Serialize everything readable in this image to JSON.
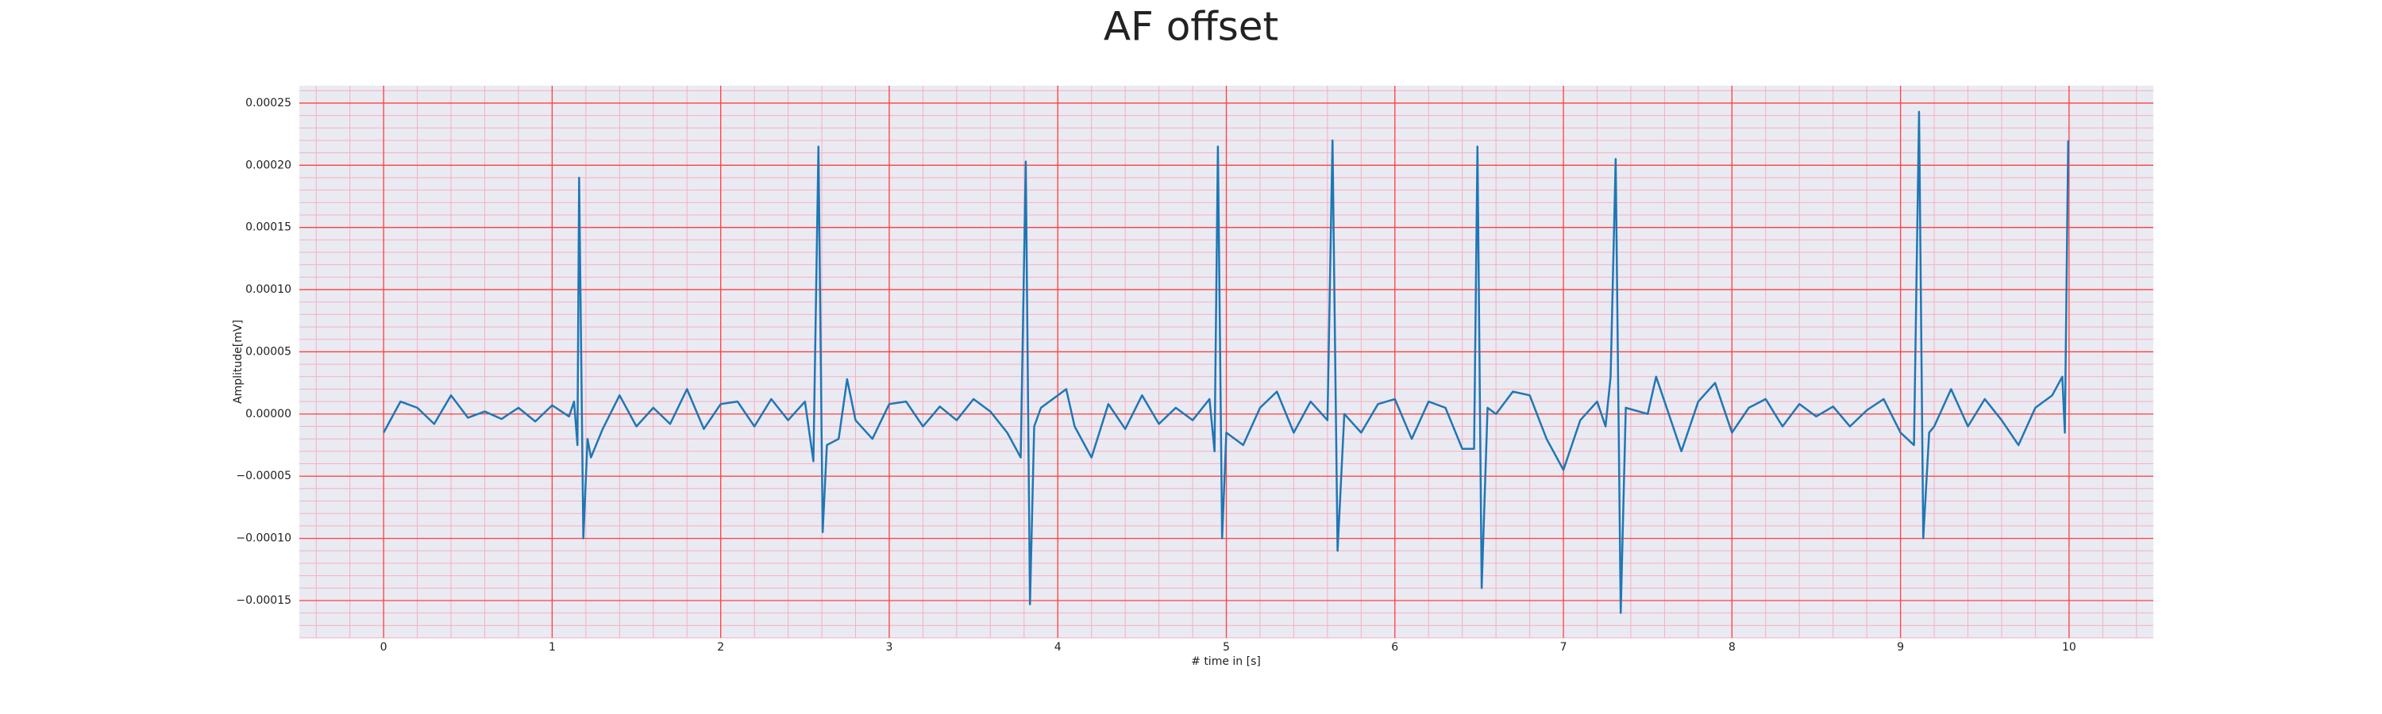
{
  "chart_data": {
    "type": "line",
    "title": "AF offset",
    "x_label": "# time in [s]",
    "y_label": "Amplitude[mV]",
    "color": "#1f77b4",
    "grid": true,
    "xlim": [
      -0.5,
      10.5
    ],
    "ylim": [
      -0.00018,
      0.000264
    ],
    "xticks": [
      0,
      1,
      2,
      3,
      4,
      5,
      6,
      7,
      8,
      9,
      10
    ],
    "yticks": [
      {
        "value": 0.00025,
        "label": "0.00025"
      },
      {
        "value": 0.0002,
        "label": "0.00020"
      },
      {
        "value": 0.00015,
        "label": "0.00015"
      },
      {
        "value": 0.0001,
        "label": "0.00010"
      },
      {
        "value": 5e-05,
        "label": "0.00005"
      },
      {
        "value": 0,
        "label": "0.00000"
      },
      {
        "value": -5e-05,
        "label": "−0.00005"
      },
      {
        "value": -0.0001,
        "label": "−0.00010"
      },
      {
        "value": -0.00015,
        "label": "−0.00015"
      }
    ],
    "x": [
      0,
      0.1,
      0.2,
      0.3,
      0.4,
      0.5,
      0.6,
      0.7,
      0.8,
      0.9,
      1.0,
      1.1,
      1.13,
      1.15,
      1.16,
      1.185,
      1.21,
      1.23,
      1.3,
      1.4,
      1.5,
      1.6,
      1.7,
      1.8,
      1.9,
      2.0,
      2.1,
      2.2,
      2.3,
      2.4,
      2.5,
      2.55,
      2.58,
      2.605,
      2.63,
      2.7,
      2.75,
      2.8,
      2.9,
      3.0,
      3.1,
      3.2,
      3.3,
      3.4,
      3.5,
      3.6,
      3.7,
      3.78,
      3.81,
      3.835,
      3.86,
      3.9,
      4.0,
      4.05,
      4.1,
      4.2,
      4.3,
      4.4,
      4.5,
      4.6,
      4.7,
      4.8,
      4.9,
      4.93,
      4.95,
      4.975,
      5.0,
      5.1,
      5.2,
      5.3,
      5.4,
      5.5,
      5.6,
      5.63,
      5.66,
      5.7,
      5.8,
      5.9,
      6.0,
      6.1,
      6.2,
      6.3,
      6.4,
      6.47,
      6.49,
      6.515,
      6.55,
      6.6,
      6.7,
      6.8,
      6.9,
      7.0,
      7.1,
      7.2,
      7.25,
      7.28,
      7.31,
      7.34,
      7.37,
      7.5,
      7.55,
      7.6,
      7.7,
      7.8,
      7.9,
      8.0,
      8.1,
      8.2,
      8.3,
      8.4,
      8.5,
      8.6,
      8.7,
      8.8,
      8.9,
      9.0,
      9.08,
      9.11,
      9.135,
      9.17,
      9.2,
      9.3,
      9.4,
      9.5,
      9.6,
      9.7,
      9.8,
      9.9,
      9.96,
      9.975,
      9.995
    ],
    "values": [
      -1.5e-05,
      1e-05,
      5e-06,
      -8e-06,
      1.5e-05,
      -3e-06,
      2e-06,
      -4e-06,
      5e-06,
      -6e-06,
      7e-06,
      -2e-06,
      1e-05,
      -2.5e-05,
      0.00019,
      -0.0001,
      -2e-05,
      -3.5e-05,
      -1.2e-05,
      1.5e-05,
      -1e-05,
      5e-06,
      -8e-06,
      2e-05,
      -1.2e-05,
      8e-06,
      1e-05,
      -1e-05,
      1.2e-05,
      -5e-06,
      1e-05,
      -3.8e-05,
      0.000215,
      -9.5e-05,
      -2.5e-05,
      -2e-05,
      2.8e-05,
      -5e-06,
      -2e-05,
      8e-06,
      1e-05,
      -1e-05,
      6e-06,
      -5e-06,
      1.2e-05,
      2e-06,
      -1.5e-05,
      -3.5e-05,
      0.000203,
      -0.000153,
      -1e-05,
      5e-06,
      1.5e-05,
      2e-05,
      -1e-05,
      -3.5e-05,
      8e-06,
      -1.2e-05,
      1.5e-05,
      -8e-06,
      5e-06,
      -5e-06,
      1.2e-05,
      -3e-05,
      0.000215,
      -0.0001,
      -1.5e-05,
      -2.5e-05,
      5e-06,
      1.8e-05,
      -1.5e-05,
      1e-05,
      -5e-06,
      0.00022,
      -0.00011,
      0,
      -1.5e-05,
      8e-06,
      1.2e-05,
      -2e-05,
      1e-05,
      5e-06,
      -2.8e-05,
      -2.8e-05,
      0.000215,
      -0.00014,
      5e-06,
      0,
      1.8e-05,
      1.5e-05,
      -2e-05,
      -4.5e-05,
      -5e-06,
      1e-05,
      -1e-05,
      3e-05,
      0.000205,
      -0.00016,
      5e-06,
      0,
      3e-05,
      1e-05,
      -3e-05,
      1e-05,
      2.5e-05,
      -1.5e-05,
      5e-06,
      1.2e-05,
      -1e-05,
      8e-06,
      -2e-06,
      6e-06,
      -1e-05,
      3e-06,
      1.2e-05,
      -1.5e-05,
      -2.5e-05,
      0.000243,
      -0.0001,
      -1.5e-05,
      -1e-05,
      2e-05,
      -1e-05,
      1.2e-05,
      -5e-06,
      -2.5e-05,
      5e-06,
      1.5e-05,
      3e-05,
      -1.5e-05,
      0.00022
    ]
  }
}
